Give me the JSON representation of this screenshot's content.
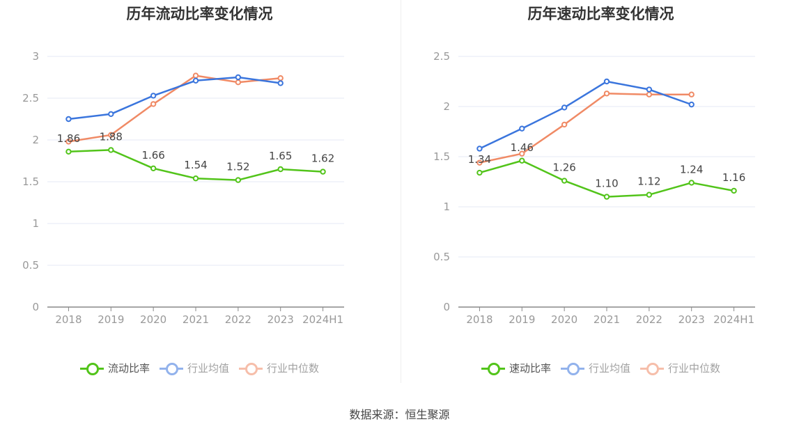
{
  "source_text": "数据来源：恒生聚源",
  "colors": {
    "green": "#52c41a",
    "blue": "#3a75dd",
    "orange": "#f08a65",
    "grid": "#e6e9f5",
    "axis": "#888888",
    "label": "#999999"
  },
  "chart_data": [
    {
      "type": "line",
      "title": "历年流动比率变化情况",
      "categories": [
        "2018",
        "2019",
        "2020",
        "2021",
        "2022",
        "2023",
        "2024H1"
      ],
      "ylim": [
        0,
        3
      ],
      "yticks": [
        0,
        0.5,
        1,
        1.5,
        2,
        2.5,
        3
      ],
      "ytick_labels": [
        "0",
        "0.5",
        "1",
        "1.5",
        "2",
        "2.5",
        "3"
      ],
      "grid": true,
      "legend_position": "bottom",
      "series": [
        {
          "name": "流动比率",
          "color": "#52c41a",
          "values": [
            1.86,
            1.88,
            1.66,
            1.54,
            1.52,
            1.65,
            1.62
          ],
          "labels": [
            "1.86",
            "1.88",
            "1.66",
            "1.54",
            "1.52",
            "1.65",
            "1.62"
          ]
        },
        {
          "name": "行业均值",
          "color": "#3a75dd",
          "values": [
            2.25,
            2.31,
            2.53,
            2.71,
            2.75,
            2.68,
            null
          ]
        },
        {
          "name": "行业中位数",
          "color": "#f08a65",
          "values": [
            1.98,
            2.06,
            2.43,
            2.77,
            2.69,
            2.74,
            null
          ]
        }
      ]
    },
    {
      "type": "line",
      "title": "历年速动比率变化情况",
      "categories": [
        "2018",
        "2019",
        "2020",
        "2021",
        "2022",
        "2023",
        "2024H1"
      ],
      "ylim": [
        0,
        2.5
      ],
      "yticks": [
        0,
        0.5,
        1,
        1.5,
        2,
        2.5
      ],
      "ytick_labels": [
        "0",
        "0.5",
        "1",
        "1.5",
        "2",
        "2.5"
      ],
      "grid": true,
      "legend_position": "bottom",
      "series": [
        {
          "name": "速动比率",
          "color": "#52c41a",
          "values": [
            1.34,
            1.46,
            1.26,
            1.1,
            1.12,
            1.24,
            1.16
          ],
          "labels": [
            "1.34",
            "1.46",
            "1.26",
            "1.10",
            "1.12",
            "1.24",
            "1.16"
          ]
        },
        {
          "name": "行业均值",
          "color": "#3a75dd",
          "values": [
            1.58,
            1.78,
            1.99,
            2.25,
            2.17,
            2.02,
            null
          ]
        },
        {
          "name": "行业中位数",
          "color": "#f08a65",
          "values": [
            1.44,
            1.53,
            1.82,
            2.13,
            2.12,
            2.12,
            null
          ]
        }
      ]
    }
  ]
}
